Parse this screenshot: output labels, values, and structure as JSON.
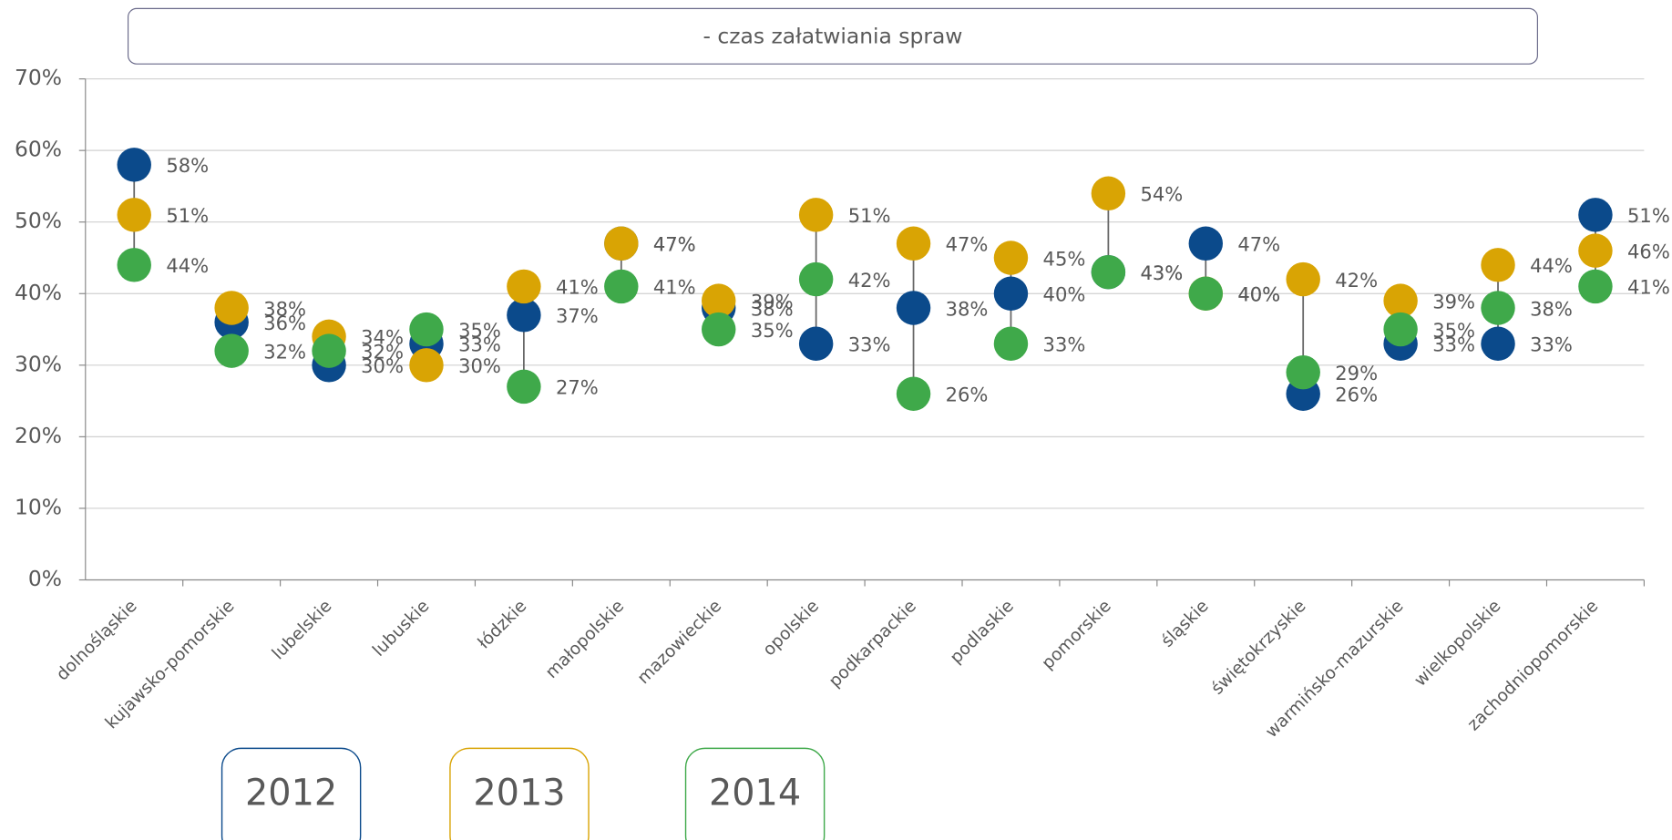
{
  "chart_data": {
    "type": "dot",
    "title": "- czas załatwiania spraw",
    "categories": [
      "dolnośląskie",
      "kujawsko-pomorskie",
      "lubelskie",
      "lubuskie",
      "łódzkie",
      "małopolskie",
      "mazowieckie",
      "opolskie",
      "podkarpackie",
      "podlaskie",
      "pomorskie",
      "śląskie",
      "świętokrzyskie",
      "warmińsko-mazurskie",
      "wielkopolskie",
      "zachodniopomorskie"
    ],
    "series": [
      {
        "name": "2012",
        "color": "#0b4a8b",
        "values": [
          58,
          36,
          30,
          33,
          37,
          47,
          38,
          33,
          38,
          40,
          43,
          47,
          26,
          33,
          33,
          51
        ],
        "value_labels": [
          "58%",
          "36%",
          "30%",
          "33%",
          "37%",
          "47%",
          "38%",
          "33%",
          "38%",
          "40%",
          "43%",
          "47%",
          "26%",
          "33%",
          "33%",
          "51%"
        ]
      },
      {
        "name": "2013",
        "color": "#d9a404",
        "values": [
          51,
          38,
          34,
          30,
          41,
          47,
          39,
          51,
          47,
          45,
          54,
          40,
          42,
          39,
          44,
          46
        ],
        "value_labels": [
          "51%",
          "38%",
          "34%",
          "30%",
          "41%",
          "47%",
          "39%",
          "51%",
          "47%",
          "45%",
          "54%",
          "40%",
          "42%",
          "39%",
          "44%",
          "46%"
        ]
      },
      {
        "name": "2014",
        "color": "#3fa94a",
        "values": [
          44,
          32,
          32,
          35,
          27,
          41,
          35,
          42,
          26,
          33,
          43,
          40,
          29,
          35,
          38,
          41
        ],
        "value_labels": [
          "44%",
          "32%",
          "32%",
          "35%",
          "27%",
          "41%",
          "35%",
          "42%",
          "26%",
          "33%",
          "43%",
          "40%",
          "29%",
          "35%",
          "38%",
          "41%"
        ]
      }
    ],
    "ylim": [
      0,
      70
    ],
    "yticks": [
      {
        "value": 0,
        "label": "0%"
      },
      {
        "value": 10,
        "label": "10%"
      },
      {
        "value": 20,
        "label": "20%"
      },
      {
        "value": 30,
        "label": "30%"
      },
      {
        "value": 40,
        "label": "40%"
      },
      {
        "value": 50,
        "label": "50%"
      },
      {
        "value": 60,
        "label": "60%"
      },
      {
        "value": 70,
        "label": "70%"
      }
    ],
    "grid": true
  }
}
